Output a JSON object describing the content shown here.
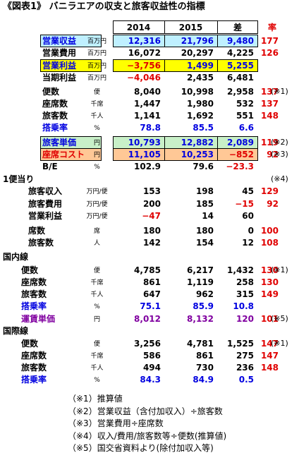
{
  "title": "《図表1》 バニラエアの収支と旅客収益性の指標",
  "header": {
    "y2014": "2014",
    "y2015": "2015",
    "diff": "差",
    "rate": "率"
  },
  "main": {
    "rows": [
      {
        "label": "営業収益",
        "unit": "百万円",
        "v2014": "12,316",
        "v2015": "21,796",
        "diff": "9,480",
        "rate": "177"
      },
      {
        "label": "営業費用",
        "unit": "百万円",
        "v2014": "16,072",
        "v2015": "20,297",
        "diff": "4,225",
        "rate": "126"
      },
      {
        "label": "営業利益",
        "unit": "百万円",
        "v2014": "−3,756",
        "v2015": "1,499",
        "diff": "5,255"
      },
      {
        "label": "当期利益",
        "unit": "百万円",
        "v2014": "−4,046",
        "v2015": "2,435",
        "diff": "6,481"
      },
      {
        "label": "便数",
        "unit": "便",
        "v2014": "8,040",
        "v2015": "10,998",
        "diff": "2,958",
        "rate": "137",
        "note": "(※1)"
      },
      {
        "label": "座席数",
        "unit": "千席",
        "v2014": "1,447",
        "v2015": "1,980",
        "diff": "532",
        "rate": "137"
      },
      {
        "label": "旅客数",
        "unit": "千人",
        "v2014": "1,141",
        "v2015": "1,692",
        "diff": "551",
        "rate": "148"
      },
      {
        "label": "搭乗率",
        "unit": "%",
        "v2014": "78.8",
        "v2015": "85.5",
        "diff": "6.6"
      },
      {
        "label": "旅客単価",
        "unit": "円",
        "v2014": "10,793",
        "v2015": "12,882",
        "diff": "2,089",
        "rate": "119",
        "note": "(※2)"
      },
      {
        "label": "座席コスト",
        "unit": "円",
        "v2014": "11,105",
        "v2015": "10,253",
        "diff": "−852",
        "rate": "92",
        "note": "(※3)"
      },
      {
        "label": "B/E",
        "unit": "%",
        "v2014": "102.9",
        "v2015": "79.6",
        "diff": "−23.3"
      }
    ]
  },
  "per_flight": {
    "title": "1便当り",
    "note": "(※4)",
    "rows": [
      {
        "label": "旅客収入",
        "unit": "万円/便",
        "v2014": "153",
        "v2015": "198",
        "diff": "45",
        "rate": "129"
      },
      {
        "label": "旅客費用",
        "unit": "万円/便",
        "v2014": "200",
        "v2015": "185",
        "diff": "−15",
        "rate": "92"
      },
      {
        "label": "営業利益",
        "unit": "万円/便",
        "v2014": "−47",
        "v2015": "14",
        "diff": "60"
      },
      {
        "label": "席数",
        "unit": "席",
        "v2014": "180",
        "v2015": "180",
        "diff": "0",
        "rate": "100"
      },
      {
        "label": "旅客数",
        "unit": "人",
        "v2014": "142",
        "v2015": "154",
        "diff": "12",
        "rate": "108"
      }
    ]
  },
  "domestic": {
    "title": "国内線",
    "rows": [
      {
        "label": "便数",
        "unit": "便",
        "v2014": "4,785",
        "v2015": "6,217",
        "diff": "1,432",
        "rate": "130",
        "note": "(※1)"
      },
      {
        "label": "座席数",
        "unit": "千席",
        "v2014": "861",
        "v2015": "1,119",
        "diff": "258",
        "rate": "130"
      },
      {
        "label": "旅客数",
        "unit": "千人",
        "v2014": "647",
        "v2015": "962",
        "diff": "315",
        "rate": "149"
      },
      {
        "label": "搭乗率",
        "unit": "%",
        "v2014": "75.1",
        "v2015": "85.9",
        "diff": "10.8"
      },
      {
        "label": "運賃単価",
        "unit": "円",
        "v2014": "8,012",
        "v2015": "8,132",
        "diff": "120",
        "rate": "101",
        "note": "(※5)"
      }
    ]
  },
  "international": {
    "title": "国際線",
    "rows": [
      {
        "label": "便数",
        "unit": "便",
        "v2014": "3,256",
        "v2015": "4,781",
        "diff": "1,525",
        "rate": "147",
        "note": "(※1)"
      },
      {
        "label": "座席数",
        "unit": "千席",
        "v2014": "586",
        "v2015": "861",
        "diff": "275",
        "rate": "147"
      },
      {
        "label": "旅客数",
        "unit": "千人",
        "v2014": "494",
        "v2015": "730",
        "diff": "236",
        "rate": "148"
      },
      {
        "label": "搭乗率",
        "unit": "%",
        "v2014": "84.3",
        "v2015": "84.9",
        "diff": "0.5"
      }
    ]
  },
  "notes": [
    "（※1）推算値",
    "（※2）営業収益（含付加収入）÷旅客数",
    "（※3）営業費用÷座席数",
    "（※4）収入/費用/旅客数等÷便数(推算値)",
    "（※5）国交省資料より(除付加収入等)"
  ]
}
